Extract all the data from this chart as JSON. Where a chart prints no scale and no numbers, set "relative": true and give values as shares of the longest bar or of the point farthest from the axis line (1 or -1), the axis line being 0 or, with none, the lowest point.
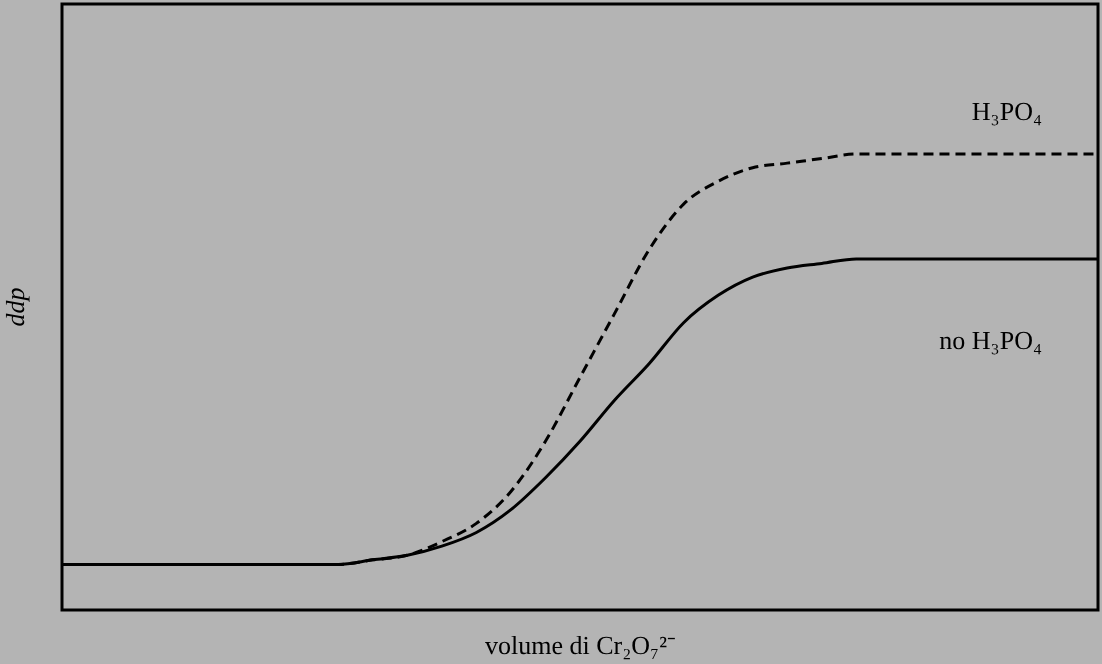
{
  "chart_data": {
    "type": "line",
    "relative": true,
    "xlabel": "volume di Cr₂O₇²⁻",
    "ylabel": "ddp",
    "categories": [
      null,
      null,
      null,
      null,
      null,
      null,
      null,
      null,
      null,
      null,
      null,
      null,
      null,
      null,
      null,
      null,
      null,
      null,
      null,
      null,
      null,
      null,
      null,
      null,
      null,
      null,
      null,
      null,
      null,
      null,
      null
    ],
    "series": [
      {
        "name": "H₃PO₄",
        "color": "#000000",
        "line_style": "dashed",
        "values": [
          0.1,
          0.1,
          0.1,
          0.1,
          0.1,
          0.1,
          0.1,
          0.1,
          0.1,
          0.11,
          0.12,
          0.15,
          0.19,
          0.26,
          0.37,
          0.51,
          0.65,
          0.79,
          0.89,
          0.94,
          0.97,
          0.98,
          0.99,
          1,
          1,
          1,
          1,
          1,
          1,
          1,
          1
        ]
      },
      {
        "name": "no H₃PO₄",
        "color": "#000000",
        "line_style": "solid",
        "values": [
          0.1,
          0.1,
          0.1,
          0.1,
          0.1,
          0.1,
          0.1,
          0.1,
          0.1,
          0.11,
          0.12,
          0.14,
          0.17,
          0.22,
          0.29,
          0.37,
          0.46,
          0.54,
          0.63,
          0.69,
          0.73,
          0.75,
          0.76,
          0.77,
          0.77,
          0.77,
          0.77,
          0.77,
          0.77,
          0.77,
          0.77
        ]
      }
    ]
  }
}
